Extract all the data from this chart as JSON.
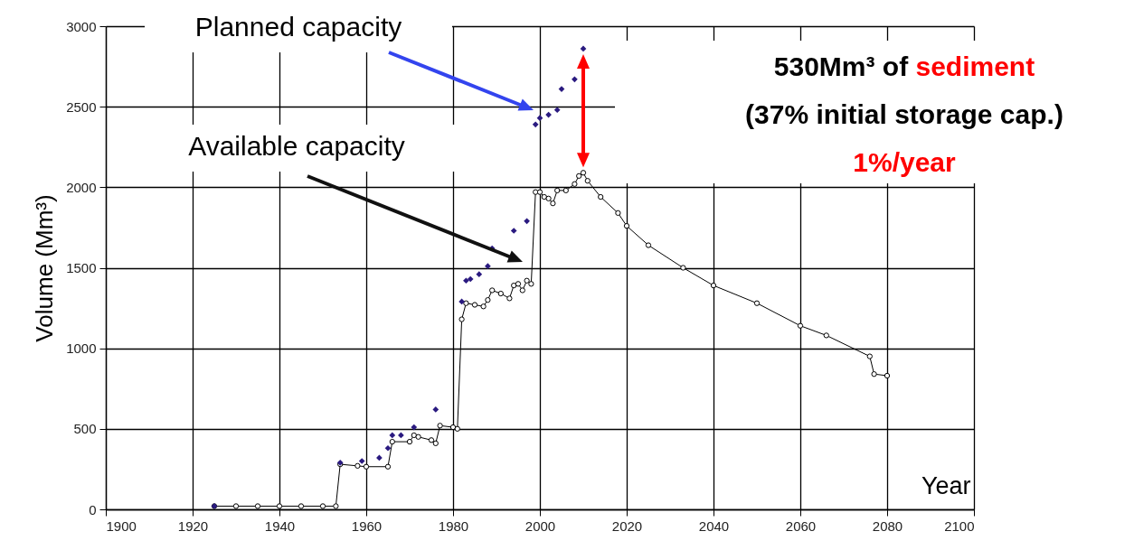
{
  "chart_data": {
    "type": "line",
    "xlabel": "Year",
    "ylabel": "Volume (Mm³)",
    "xlim": [
      1900,
      2100
    ],
    "xticks": [
      1900,
      1920,
      1940,
      1960,
      1980,
      2000,
      2020,
      2040,
      2060,
      2080,
      2100
    ],
    "ylim": [
      0,
      3000
    ],
    "yticks": [
      0,
      500,
      1000,
      1500,
      2000,
      2500,
      3000
    ],
    "grid": true,
    "legend": false,
    "series": [
      {
        "marker": "circle",
        "color": "#000000",
        "x": [
          1925,
          1930,
          1935,
          1940,
          1945,
          1950,
          1953,
          1954,
          1958,
          1960,
          1965,
          1966,
          1970,
          1971,
          1972,
          1975,
          1976,
          1977,
          1980,
          1981,
          1982,
          1983,
          1985,
          1987,
          1988,
          1989,
          1991,
          1993,
          1994,
          1995,
          1996,
          1997,
          1998,
          1999,
          2000,
          2001,
          2002,
          2003,
          2004,
          2006,
          2008,
          2009,
          2010,
          2011,
          2014,
          2018,
          2020,
          2025,
          2033,
          2040,
          2050,
          2060,
          2066,
          2076,
          2077,
          2080
        ],
        "values": [
          20,
          20,
          20,
          20,
          20,
          20,
          20,
          280,
          270,
          265,
          265,
          420,
          420,
          460,
          450,
          430,
          410,
          520,
          510,
          500,
          1180,
          1280,
          1270,
          1260,
          1300,
          1360,
          1340,
          1310,
          1390,
          1400,
          1360,
          1420,
          1400,
          1970,
          1970,
          1940,
          1930,
          1900,
          1980,
          1980,
          2020,
          2070,
          2090,
          2040,
          1940,
          1840,
          1760,
          1640,
          1500,
          1390,
          1280,
          1140,
          1080,
          950,
          840,
          830
        ]
      },
      {
        "type": "scatter",
        "marker": "diamond",
        "color": "#2a1a80",
        "x": [
          1925,
          1954,
          1959,
          1963,
          1965,
          1966,
          1968,
          1971,
          1976,
          1982,
          1983,
          1984,
          1986,
          1988,
          1989,
          1994,
          1997,
          1999,
          2000,
          2002,
          2004,
          2005,
          2008,
          2010
        ],
        "values": [
          20,
          290,
          300,
          320,
          380,
          460,
          460,
          510,
          620,
          1290,
          1420,
          1430,
          1460,
          1510,
          1620,
          1730,
          1790,
          2390,
          2430,
          2450,
          2480,
          2610,
          2670,
          2860
        ]
      }
    ],
    "annotations": [
      "Planned capacity",
      "Available capacity",
      "530Mm³ of",
      "sediment",
      "(37% initial storage cap.)",
      "1%/year"
    ]
  }
}
